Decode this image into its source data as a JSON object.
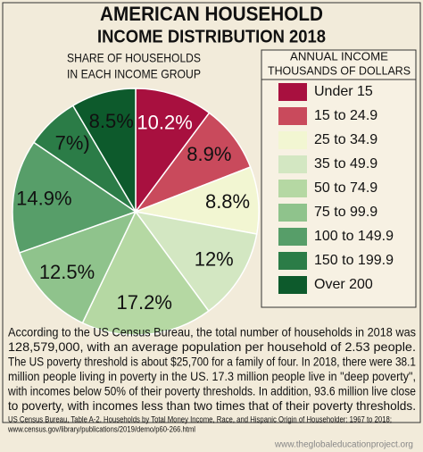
{
  "chart_data": {
    "type": "pie",
    "title": [
      "AMERICAN HOUSEHOLD",
      "INCOME DISTRIBUTION 2018"
    ],
    "subtitle": [
      "SHARE OF HOUSEHOLDS",
      "IN EACH INCOME GROUP"
    ],
    "legend_title": [
      "ANNUAL INCOME",
      "THOUSANDS OF DOLLARS"
    ],
    "categories": [
      "Under 15",
      "15 to 24.9",
      "25 to 34.9",
      "35 to 49.9",
      "50 to 74.9",
      "75 to 99.9",
      "100 to 149.9",
      "150 to 199.9",
      "Over 200"
    ],
    "values": [
      10.2,
      8.9,
      8.8,
      12,
      17.2,
      12.5,
      14.9,
      7,
      8.5
    ],
    "value_labels": [
      "10.2%",
      "8.9%",
      "8.8%",
      "12%",
      "17.2%",
      "12.5%",
      "14.9%",
      "7%)",
      "8.5%"
    ],
    "colors": [
      "#a8103f",
      "#c94a5c",
      "#f2f6d2",
      "#d3e7c2",
      "#b5d8a3",
      "#8fc38c",
      "#579e69",
      "#2b7c47",
      "#0d5a2c"
    ],
    "notes": [
      "According to the US Census Bureau, the total number of households in 2018 was",
      "128,579,000, with an average population per household of 2.53 people.",
      "The US poverty threshold is about $25,700 for a family of four. In 2018, there were 38.1",
      "million people living in poverty in the US. 17.3 million people live in \"deep poverty\",",
      "with incomes below 50% of their poverty thresholds. In addition, 93.6 million live close",
      "to poverty, with incomes less than two times that of their poverty thresholds."
    ],
    "source": [
      "US Census Bureau, Table A-2. Households by Total Money Income, Race, and Hispanic Origin of Householder: 1967 to 2018;",
      "www.census.gov/library/publications/2019/demo/p60-266.html"
    ],
    "footer": "www.theglobaleducationproject.org"
  }
}
